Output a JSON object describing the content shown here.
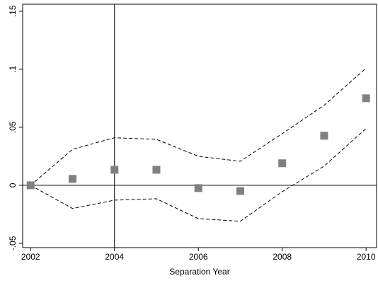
{
  "chart_data": {
    "type": "scatter",
    "xlabel": "Separation Year",
    "x": [
      2002,
      2003,
      2004,
      2005,
      2006,
      2007,
      2008,
      2009,
      2010
    ],
    "values": [
      0,
      0.0055,
      0.0134,
      0.0134,
      -0.0024,
      -0.0049,
      0.019,
      0.0427,
      0.075
    ],
    "upper": [
      0,
      0.031,
      0.041,
      0.0396,
      0.025,
      0.0207,
      0.0445,
      0.069,
      0.101
    ],
    "lower": [
      0,
      -0.02,
      -0.0128,
      -0.0116,
      -0.0287,
      -0.031,
      -0.0055,
      0.0165,
      0.049
    ],
    "color": "#808080",
    "band_color": "#000000",
    "xlim": [
      2001.81,
      2010.25
    ],
    "ylim": [
      -0.0537,
      0.156
    ],
    "xticks": [
      2002,
      2004,
      2006,
      2008,
      2010
    ],
    "yticks": [
      {
        "value": -0.05,
        "label": "-.05"
      },
      0,
      {
        "value": 0.05,
        "label": ".05"
      },
      {
        "value": 0.1,
        "label": ".1"
      },
      {
        "value": 0.15,
        "label": ".15"
      }
    ],
    "xline": 2004,
    "yline": 0
  }
}
